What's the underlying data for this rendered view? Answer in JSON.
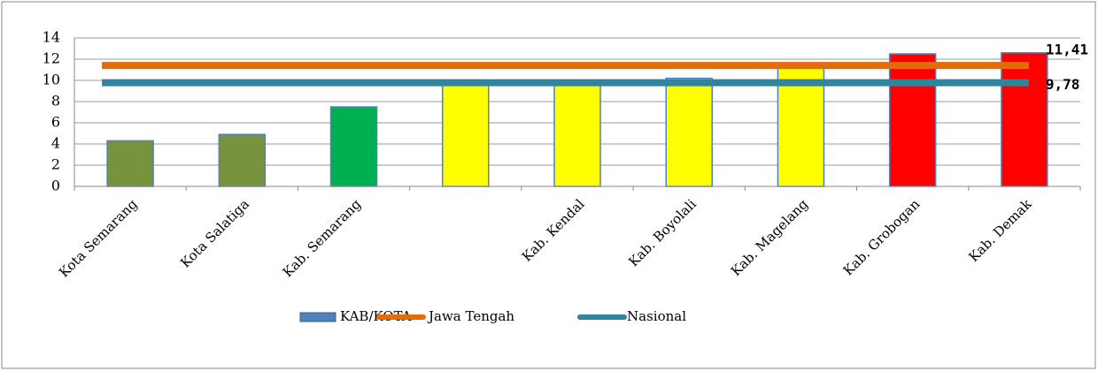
{
  "chart_data": {
    "type": "bar",
    "categories": [
      "Kota Semarang",
      "Kota Salatiga",
      "Kab. Semarang",
      null,
      "Kab. Kendal",
      "Kab. Boyolali",
      "Kab. Magelang",
      "Kab. Grobogan",
      "Kab. Demak"
    ],
    "series": [
      {
        "name": "KAB/KOTA",
        "color": "#4f81bd",
        "values": [
          4.3,
          4.9,
          7.5,
          9.7,
          9.7,
          10.2,
          11.3,
          12.5,
          12.6
        ],
        "colors": [
          "#77933c",
          "#77933c",
          "#00b050",
          "#ffff00",
          "#ffff00",
          "#ffff00",
          "#ffff00",
          "#ff0000",
          "#ff0000"
        ]
      }
    ],
    "reference_lines": [
      {
        "name": "Jawa Tengah",
        "color": "#e36c09",
        "value": 11.41,
        "value_label": "11,41"
      },
      {
        "name": "Nasional",
        "color": "#31849b",
        "value": 9.78,
        "value_label": "9,78"
      }
    ],
    "ylim": [
      0,
      14
    ],
    "yticks": [
      0,
      2,
      4,
      6,
      8,
      10,
      12,
      14
    ],
    "grid": true,
    "legend": "bottom"
  }
}
